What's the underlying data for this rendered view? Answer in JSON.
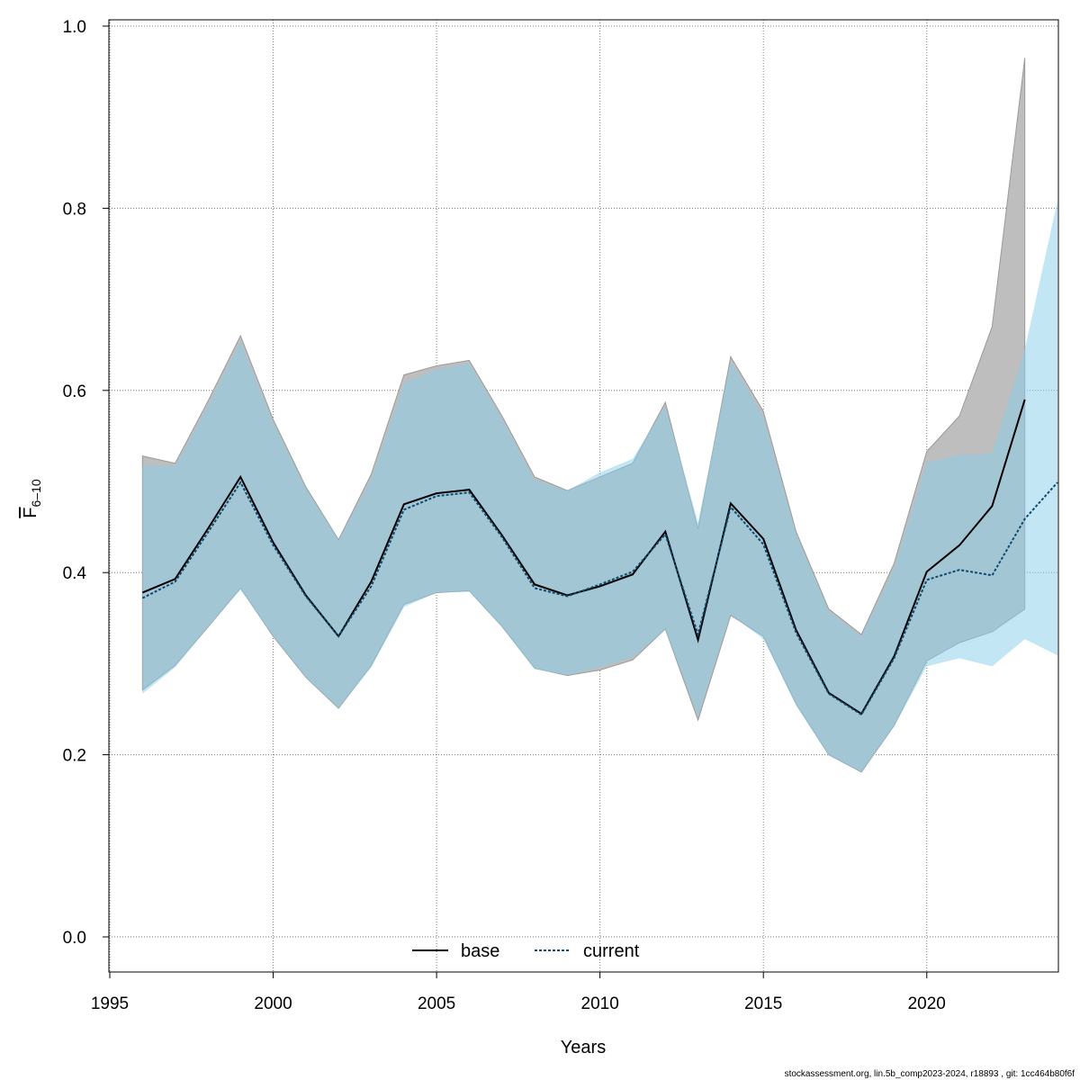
{
  "chart_data": {
    "type": "area",
    "xlabel": "Years",
    "ylabel": {
      "main": "F",
      "subscript": "6–10"
    },
    "xlim": [
      1995,
      2024
    ],
    "ylim": [
      0,
      1
    ],
    "x_ticks": [
      1995,
      2000,
      2005,
      2010,
      2015,
      2020
    ],
    "y_ticks": [
      0.0,
      0.2,
      0.4,
      0.6,
      0.8,
      1.0
    ],
    "y_tick_labels": [
      "0.0",
      "0.2",
      "0.4",
      "0.6",
      "0.8",
      "1.0"
    ],
    "grid": true,
    "legend_position": "bottom-center",
    "series": [
      {
        "name": "base",
        "line_color": "#000000",
        "line_style": "solid",
        "band_color": "#bebebe",
        "x": [
          1996,
          1997,
          1998,
          1999,
          2000,
          2001,
          2002,
          2003,
          2004,
          2005,
          2006,
          2007,
          2008,
          2009,
          2010,
          2011,
          2012,
          2013,
          2014,
          2015,
          2016,
          2017,
          2018,
          2019,
          2020,
          2021,
          2022,
          2023
        ],
        "values": [
          0.378,
          0.393,
          0.448,
          0.505,
          0.433,
          0.375,
          0.33,
          0.39,
          0.475,
          0.487,
          0.491,
          0.441,
          0.387,
          0.375,
          0.385,
          0.398,
          0.445,
          0.326,
          0.476,
          0.437,
          0.337,
          0.268,
          0.245,
          0.308,
          0.401,
          0.43,
          0.473,
          0.59
        ],
        "upper": [
          0.528,
          0.52,
          0.588,
          0.66,
          0.568,
          0.494,
          0.436,
          0.508,
          0.617,
          0.627,
          0.633,
          0.572,
          0.505,
          0.49,
          0.505,
          0.52,
          0.587,
          0.448,
          0.637,
          0.577,
          0.445,
          0.36,
          0.332,
          0.41,
          0.533,
          0.572,
          0.67,
          0.965
        ],
        "lower": [
          0.271,
          0.298,
          0.34,
          0.383,
          0.33,
          0.285,
          0.251,
          0.298,
          0.365,
          0.378,
          0.38,
          0.341,
          0.295,
          0.287,
          0.293,
          0.304,
          0.338,
          0.238,
          0.353,
          0.33,
          0.256,
          0.2,
          0.181,
          0.232,
          0.303,
          0.323,
          0.335,
          0.36
        ]
      },
      {
        "name": "current",
        "line_color": "#0c4a6e",
        "line_style": "dotted",
        "band_color": "#87ceeb",
        "x": [
          1996,
          1997,
          1998,
          1999,
          2000,
          2001,
          2002,
          2003,
          2004,
          2005,
          2006,
          2007,
          2008,
          2009,
          2010,
          2011,
          2012,
          2013,
          2014,
          2015,
          2016,
          2017,
          2018,
          2019,
          2020,
          2021,
          2022,
          2023,
          2024
        ],
        "values": [
          0.372,
          0.39,
          0.444,
          0.499,
          0.43,
          0.374,
          0.33,
          0.385,
          0.469,
          0.484,
          0.488,
          0.439,
          0.383,
          0.374,
          0.387,
          0.401,
          0.442,
          0.332,
          0.472,
          0.431,
          0.334,
          0.267,
          0.244,
          0.306,
          0.392,
          0.403,
          0.397,
          0.459,
          0.499
        ],
        "upper": [
          0.518,
          0.517,
          0.583,
          0.654,
          0.565,
          0.493,
          0.436,
          0.503,
          0.608,
          0.623,
          0.63,
          0.569,
          0.502,
          0.49,
          0.51,
          0.525,
          0.583,
          0.455,
          0.633,
          0.571,
          0.443,
          0.358,
          0.33,
          0.405,
          0.521,
          0.529,
          0.531,
          0.645,
          0.808
        ],
        "lower": [
          0.267,
          0.296,
          0.34,
          0.381,
          0.33,
          0.285,
          0.251,
          0.296,
          0.362,
          0.378,
          0.379,
          0.34,
          0.294,
          0.287,
          0.296,
          0.307,
          0.337,
          0.242,
          0.354,
          0.327,
          0.254,
          0.199,
          0.181,
          0.231,
          0.297,
          0.306,
          0.297,
          0.327,
          0.309
        ]
      }
    ]
  },
  "footer": "stockassessment.org, lin.5b_comp2023-2024, r18893 , git: 1cc464b80f6f"
}
